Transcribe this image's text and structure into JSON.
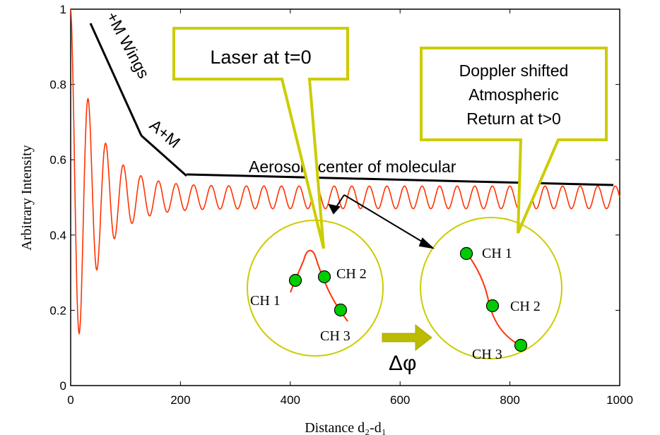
{
  "chart_data": {
    "type": "line",
    "title": "",
    "xlabel": "Distance d₂-d₁",
    "ylabel": "Arbitrary Intensity",
    "xlim": [
      0,
      1000
    ],
    "ylim": [
      0,
      1
    ],
    "x_ticks": [
      "0",
      "200",
      "400",
      "600",
      "800",
      "1000"
    ],
    "y_ticks": [
      "0",
      "0.2",
      "0.4",
      "0.6",
      "0.8",
      "1"
    ],
    "grid": false,
    "series": [
      {
        "color": "#ff3300",
        "description_points": {
          "envelope_top_x": [
            0,
            30,
            120,
            200,
            1000
          ],
          "envelope_top_y": [
            1.0,
            0.95,
            0.65,
            0.56,
            0.53
          ],
          "asymptote": 0.5
        }
      }
    ],
    "annotations": {
      "wings_label": "+M Wings",
      "am_label": "A+M",
      "aerosol_label": "Aerosol +center of molecular",
      "laser_callout": "Laser at t=0",
      "doppler_callout": [
        "Doppler shifted",
        "Atmospheric",
        "Return at t>0"
      ],
      "ch1": "CH 1",
      "ch2": "CH 2",
      "ch3": "CH 3",
      "delta_phi": "Δφ"
    },
    "colors": {
      "signal": "#ff3300",
      "callout": "#cccc00",
      "marker": "#00cc00",
      "arrow": "#bbbb00"
    }
  }
}
